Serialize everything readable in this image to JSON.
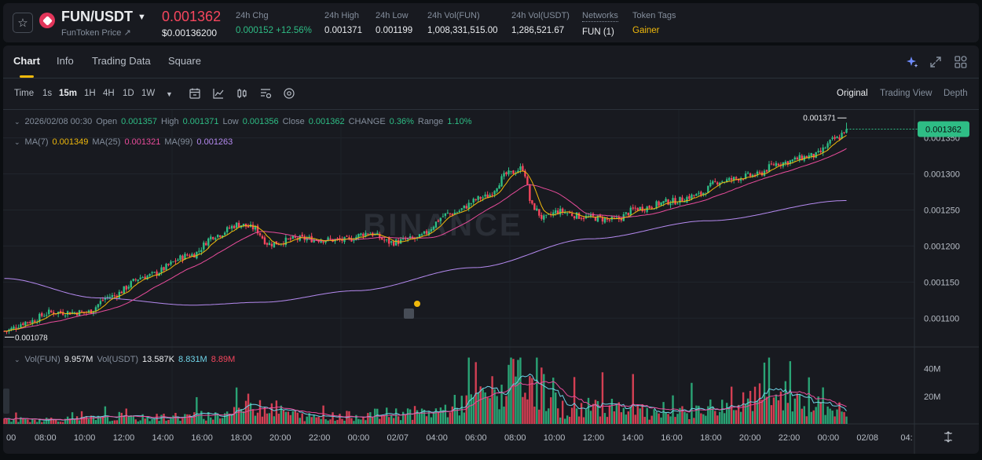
{
  "ticker": {
    "pair": "FUN/USDT",
    "subname": "FunToken Price",
    "subname_arrow": "↗",
    "last_price": "0.001362",
    "usd_price": "$0.00136200",
    "stats": [
      {
        "label": "24h Chg",
        "value": "0.000152 +12.56%",
        "style": "green",
        "x": 296
      },
      {
        "label": "24h High",
        "value": "0.001371",
        "style": "",
        "x": 409
      },
      {
        "label": "24h Low",
        "value": "0.001199",
        "style": "",
        "x": 474
      },
      {
        "label": "24h Vol(FUN)",
        "value": "1,008,331,515.00",
        "style": "",
        "x": 540
      },
      {
        "label": "24h Vol(USDT)",
        "value": "1,286,521.67",
        "style": "",
        "x": 647
      },
      {
        "label": "Networks",
        "value": "FUN (1)",
        "style": "",
        "x": 737,
        "dotted": true
      },
      {
        "label": "Token Tags",
        "value": "Gainer",
        "style": "gold",
        "x": 801
      }
    ]
  },
  "tabs": [
    {
      "label": "Chart",
      "active": true
    },
    {
      "label": "Info",
      "active": false
    },
    {
      "label": "Trading Data",
      "active": false
    },
    {
      "label": "Square",
      "active": false
    }
  ],
  "timeframes": [
    {
      "label": "Time",
      "active": false
    },
    {
      "label": "1s",
      "active": false
    },
    {
      "label": "15m",
      "active": true
    },
    {
      "label": "1H",
      "active": false
    },
    {
      "label": "4H",
      "active": false
    },
    {
      "label": "1D",
      "active": false
    },
    {
      "label": "1W",
      "active": false
    }
  ],
  "views": [
    {
      "label": "Original",
      "active": true
    },
    {
      "label": "Trading View",
      "active": false
    },
    {
      "label": "Depth",
      "active": false
    }
  ],
  "ohlc": {
    "date": "2026/02/08 00:30",
    "open_label": "Open",
    "open": "0.001357",
    "high_label": "High",
    "high": "0.001371",
    "low_label": "Low",
    "low": "0.001356",
    "close_label": "Close",
    "close": "0.001362",
    "change_label": "CHANGE",
    "change": "0.36%",
    "range_label": "Range",
    "range": "1.10%"
  },
  "ma": {
    "ma7_label": "MA(7)",
    "ma7": "0.001349",
    "ma25_label": "MA(25)",
    "ma25": "0.001321",
    "ma99_label": "MA(99)",
    "ma99": "0.001263"
  },
  "vol": {
    "fun_label": "Vol(FUN)",
    "fun": "9.957M",
    "usdt_label": "Vol(USDT)",
    "usdt": "13.587K",
    "ma1": "8.831M",
    "ma2": "8.89M"
  },
  "watermark": "BINANCE",
  "chart_data": {
    "type": "candlestick",
    "interval": "15m",
    "price_axis": {
      "ticks": [
        "0.001350",
        "0.001300",
        "0.001250",
        "0.001200",
        "0.001150",
        "0.001100"
      ],
      "range": [
        0.00106,
        0.00138
      ]
    },
    "volume_axis": {
      "ticks": [
        "40M",
        "20M"
      ],
      "range": [
        0,
        50
      ]
    },
    "time_ticks": [
      "00",
      "08:00",
      "10:00",
      "12:00",
      "14:00",
      "16:00",
      "18:00",
      "20:00",
      "22:00",
      "00:00",
      "02/07",
      "04:00",
      "06:00",
      "08:00",
      "10:00",
      "12:00",
      "14:00",
      "16:00",
      "18:00",
      "20:00",
      "22:00",
      "00:00",
      "02/08",
      "04:"
    ],
    "current_price": "0.001362",
    "high_marker": "0.001371",
    "low_marker": "0.001078",
    "close_anchors": [
      [
        0,
        0.001082
      ],
      [
        10,
        0.001095
      ],
      [
        20,
        0.001108
      ],
      [
        35,
        0.001108
      ],
      [
        45,
        0.00113
      ],
      [
        60,
        0.001158
      ],
      [
        80,
        0.001188
      ],
      [
        90,
        0.001215
      ],
      [
        100,
        0.00123
      ],
      [
        106,
        0.001225
      ],
      [
        113,
        0.001203
      ],
      [
        125,
        0.00121
      ],
      [
        145,
        0.001208
      ],
      [
        155,
        0.001218
      ],
      [
        165,
        0.001205
      ],
      [
        175,
        0.00121
      ],
      [
        190,
        0.001245
      ],
      [
        205,
        0.001268
      ],
      [
        215,
        0.0013
      ],
      [
        221,
        0.001308
      ],
      [
        225,
        0.001255
      ],
      [
        230,
        0.001238
      ],
      [
        236,
        0.001248
      ],
      [
        248,
        0.00124
      ],
      [
        260,
        0.001236
      ],
      [
        270,
        0.001252
      ],
      [
        285,
        0.001262
      ],
      [
        295,
        0.00127
      ],
      [
        305,
        0.00129
      ],
      [
        320,
        0.001298
      ],
      [
        330,
        0.001315
      ],
      [
        345,
        0.001325
      ],
      [
        355,
        0.001349
      ],
      [
        359,
        0.001362
      ]
    ],
    "ma99_anchors": [
      [
        0,
        0.001155
      ],
      [
        40,
        0.001128
      ],
      [
        80,
        0.001118
      ],
      [
        110,
        0.001122
      ],
      [
        150,
        0.001138
      ],
      [
        200,
        0.00117
      ],
      [
        250,
        0.00121
      ],
      [
        300,
        0.001235
      ],
      [
        359,
        0.001263
      ]
    ],
    "volume_anchors": [
      [
        0,
        3
      ],
      [
        50,
        4
      ],
      [
        90,
        6
      ],
      [
        106,
        14
      ],
      [
        130,
        5
      ],
      [
        180,
        8
      ],
      [
        210,
        22
      ],
      [
        222,
        34
      ],
      [
        240,
        10
      ],
      [
        260,
        14
      ],
      [
        280,
        6
      ],
      [
        305,
        12
      ],
      [
        330,
        20
      ],
      [
        350,
        12
      ],
      [
        359,
        9
      ]
    ]
  }
}
